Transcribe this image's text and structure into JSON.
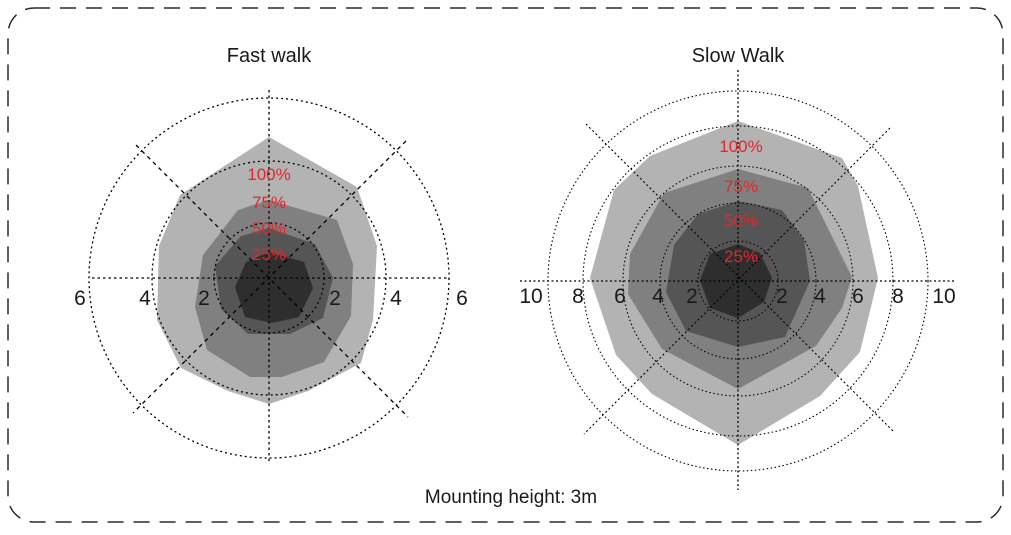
{
  "footer": "Mounting height: 3m",
  "colors": {
    "border": "#2b2b2b",
    "ring_100": "#b3b3b3",
    "ring_75": "#808080",
    "ring_50": "#555555",
    "ring_25": "#2e2e2e",
    "percent_label": "#e8242a",
    "axis": "#000000"
  },
  "diagrams": [
    {
      "id": "fast",
      "title": "Fast walk",
      "max_range": 6,
      "axis_ticks": [
        "6",
        "4",
        "2",
        "2",
        "4",
        "6"
      ],
      "circle_values": [
        2,
        4,
        6
      ],
      "percent_labels": [
        "100%",
        "75%",
        "50%",
        "25%"
      ]
    },
    {
      "id": "slow",
      "title": "Slow Walk",
      "max_range": 10,
      "axis_ticks": [
        "10",
        "8",
        "6",
        "4",
        "2",
        "2",
        "4",
        "6",
        "8",
        "10"
      ],
      "circle_values": [
        2,
        4,
        6,
        8,
        10
      ],
      "percent_labels": [
        "100%",
        "75%",
        "50%",
        "25%"
      ]
    }
  ]
}
